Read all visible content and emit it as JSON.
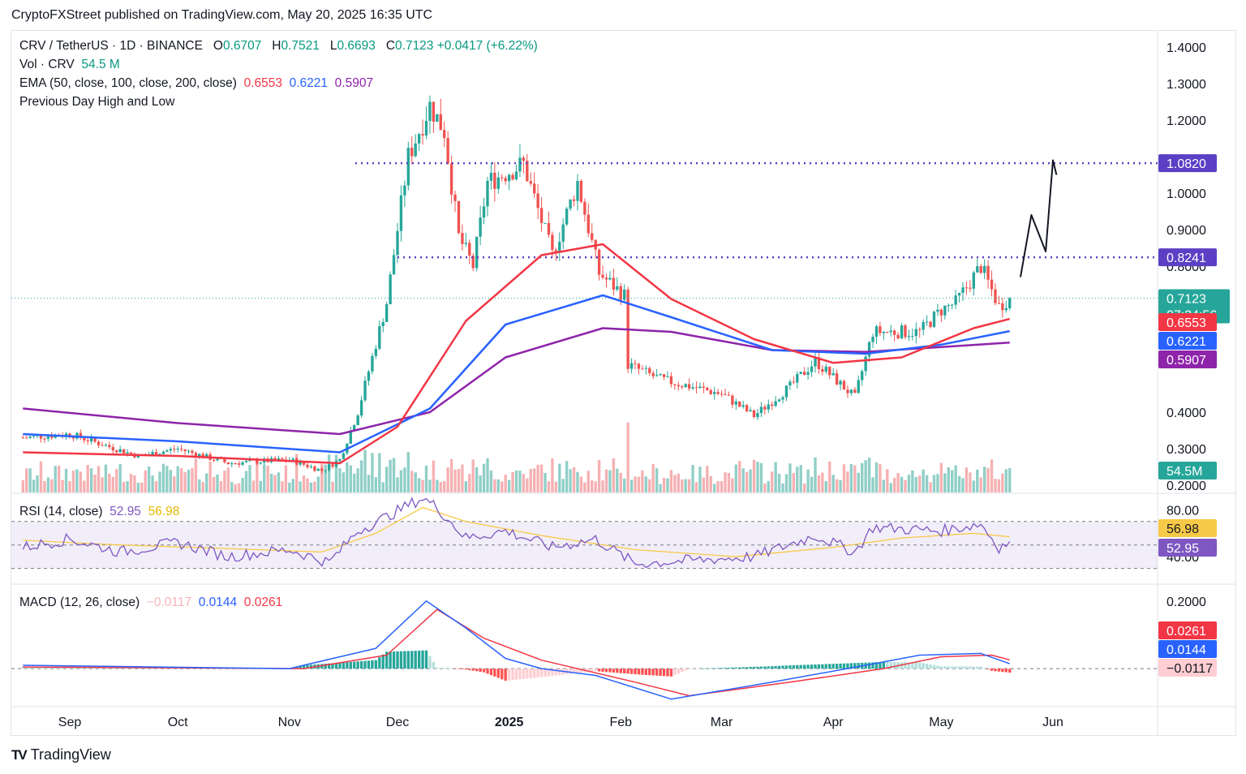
{
  "credit": "CryptoFXStreet published on TradingView.com, May 20, 2025 16:35 UTC",
  "brand": {
    "logo_mark": "TV",
    "name": "TradingView"
  },
  "colors": {
    "up": "#26a69a",
    "down": "#ef5350",
    "ema50": "#f23645",
    "ema100": "#2962ff",
    "ema200": "#8e24aa",
    "level": "#5b3fc4",
    "rsi": "#7e57c2",
    "rsi_ma": "#f7c948",
    "macd": "#2962ff",
    "signal": "#f23645",
    "current": "#26a69a"
  },
  "legend": {
    "symbol": "CRV / TetherUS · 1D · BINANCE",
    "o_label": "O",
    "o": "0.6707",
    "h_label": "H",
    "h": "0.7521",
    "l_label": "L",
    "l": "0.6693",
    "c_label": "C",
    "c": "0.7123",
    "change": "+0.0417 (+6.22%)",
    "vol_label": "Vol · CRV",
    "vol": "54.5 M",
    "ema_label": "EMA (50, close, 100, close, 200, close)",
    "ema50": "0.6553",
    "ema100": "0.6221",
    "ema200": "0.5907",
    "pdhl": "Previous Day High and Low",
    "rsi_label": "RSI (14, close)",
    "rsi": "52.95",
    "rsi_ma": "56.98",
    "macd_label": "MACD (12, 26, close)",
    "macd_hist": "−0.0117",
    "macd": "0.0144",
    "macd_signal": "0.0261"
  },
  "chart_data": [
    {
      "type": "candlestick",
      "title": "CRV / TetherUS · 1D · BINANCE",
      "x_axis": {
        "ticks": [
          "Sep",
          "Oct",
          "Nov",
          "Dec",
          "2025",
          "Feb",
          "Mar",
          "Apr",
          "May",
          "Jun"
        ]
      },
      "y_axis": {
        "ticks": [
          "1.4000",
          "1.3000",
          "1.2000",
          "1.0000",
          "0.9000",
          "0.8000",
          "0.4000",
          "0.3000",
          "0.2000"
        ],
        "range": [
          0.18,
          1.44
        ]
      },
      "key_levels": [
        {
          "label": "1.0820",
          "value": 1.082
        },
        {
          "label": "0.8241",
          "value": 0.8241
        }
      ],
      "current": {
        "price": "0.7123",
        "countdown": "07:24:56",
        "value": 0.7123
      },
      "ema_tags": [
        {
          "label": "0.6553",
          "value": 0.6553
        },
        {
          "label": "0.6221",
          "value": 0.6221
        },
        {
          "label": "0.5907",
          "value": 0.5907
        }
      ],
      "volume_tag": "54.5M",
      "price_path": [
        [
          "2024-08-19",
          0.33
        ],
        [
          "2024-09-01",
          0.34
        ],
        [
          "2024-09-20",
          0.28
        ],
        [
          "2024-10-01",
          0.3
        ],
        [
          "2024-10-15",
          0.26
        ],
        [
          "2024-11-01",
          0.27
        ],
        [
          "2024-11-10",
          0.24
        ],
        [
          "2024-11-15",
          0.27
        ],
        [
          "2024-11-20",
          0.4
        ],
        [
          "2024-11-28",
          0.7
        ],
        [
          "2024-12-04",
          1.1
        ],
        [
          "2024-12-10",
          1.24
        ],
        [
          "2024-12-14",
          1.17
        ],
        [
          "2024-12-18",
          0.88
        ],
        [
          "2024-12-22",
          0.8
        ],
        [
          "2024-12-26",
          1.03
        ],
        [
          "2025-01-05",
          1.08
        ],
        [
          "2025-01-13",
          0.83
        ],
        [
          "2025-01-20",
          1.03
        ],
        [
          "2025-01-26",
          0.78
        ],
        [
          "2025-02-02",
          0.72
        ],
        [
          "2025-02-03",
          0.53
        ],
        [
          "2025-02-12",
          0.49
        ],
        [
          "2025-03-01",
          0.45
        ],
        [
          "2025-03-10",
          0.39
        ],
        [
          "2025-03-20",
          0.47
        ],
        [
          "2025-03-27",
          0.54
        ],
        [
          "2025-04-07",
          0.44
        ],
        [
          "2025-04-12",
          0.62
        ],
        [
          "2025-04-25",
          0.62
        ],
        [
          "2025-05-01",
          0.68
        ],
        [
          "2025-05-05",
          0.7
        ],
        [
          "2025-05-12",
          0.8
        ],
        [
          "2025-05-17",
          0.69
        ],
        [
          "2025-05-20",
          0.7123
        ]
      ],
      "ema50_path": [
        [
          "2024-08-19",
          0.29
        ],
        [
          "2024-10-01",
          0.28
        ],
        [
          "2024-11-15",
          0.26
        ],
        [
          "2024-12-01",
          0.36
        ],
        [
          "2024-12-20",
          0.65
        ],
        [
          "2025-01-10",
          0.83
        ],
        [
          "2025-01-27",
          0.86
        ],
        [
          "2025-02-15",
          0.71
        ],
        [
          "2025-03-10",
          0.6
        ],
        [
          "2025-04-01",
          0.535
        ],
        [
          "2025-04-20",
          0.55
        ],
        [
          "2025-05-10",
          0.63
        ],
        [
          "2025-05-20",
          0.6553
        ]
      ],
      "ema100_path": [
        [
          "2024-08-19",
          0.34
        ],
        [
          "2024-10-01",
          0.32
        ],
        [
          "2024-11-15",
          0.29
        ],
        [
          "2024-12-10",
          0.41
        ],
        [
          "2024-12-31",
          0.64
        ],
        [
          "2025-01-27",
          0.72
        ],
        [
          "2025-02-15",
          0.66
        ],
        [
          "2025-03-15",
          0.57
        ],
        [
          "2025-04-10",
          0.56
        ],
        [
          "2025-05-01",
          0.585
        ],
        [
          "2025-05-20",
          0.6221
        ]
      ],
      "ema200_path": [
        [
          "2024-08-19",
          0.41
        ],
        [
          "2024-10-01",
          0.37
        ],
        [
          "2024-11-15",
          0.34
        ],
        [
          "2024-12-10",
          0.4
        ],
        [
          "2024-12-31",
          0.55
        ],
        [
          "2025-01-27",
          0.63
        ],
        [
          "2025-02-15",
          0.62
        ],
        [
          "2025-03-15",
          0.57
        ],
        [
          "2025-04-10",
          0.565
        ],
        [
          "2025-05-20",
          0.5907
        ]
      ],
      "projection_path": [
        [
          "2025-05-23",
          0.77
        ],
        [
          "2025-05-26",
          0.94
        ],
        [
          "2025-05-30",
          0.84
        ],
        [
          "2025-06-01",
          1.09
        ],
        [
          "2025-06-02",
          1.05
        ]
      ]
    },
    {
      "type": "line",
      "title": "RSI (14, close)",
      "y_axis": {
        "ticks": [
          "80.00",
          "40.00"
        ],
        "range": [
          18,
          92
        ]
      },
      "bands": {
        "upper": 70,
        "middle": 50,
        "lower": 30
      },
      "tags": [
        {
          "label": "56.98",
          "value": 56.98
        },
        {
          "label": "52.95",
          "value": 52.95
        }
      ],
      "rsi_path": [
        [
          "2024-08-19",
          48
        ],
        [
          "2024-09-01",
          55
        ],
        [
          "2024-09-15",
          44
        ],
        [
          "2024-10-01",
          52
        ],
        [
          "2024-10-15",
          40
        ],
        [
          "2024-11-01",
          46
        ],
        [
          "2024-11-12",
          35
        ],
        [
          "2024-11-20",
          62
        ],
        [
          "2024-11-28",
          74
        ],
        [
          "2024-12-04",
          84
        ],
        [
          "2024-12-08",
          90
        ],
        [
          "2024-12-12",
          82
        ],
        [
          "2024-12-20",
          56
        ],
        [
          "2024-12-31",
          62
        ],
        [
          "2025-01-13",
          48
        ],
        [
          "2025-01-25",
          55
        ],
        [
          "2025-02-05",
          34
        ],
        [
          "2025-03-10",
          40
        ],
        [
          "2025-03-27",
          58
        ],
        [
          "2025-04-07",
          44
        ],
        [
          "2025-04-12",
          65
        ],
        [
          "2025-05-01",
          62
        ],
        [
          "2025-05-12",
          68
        ],
        [
          "2025-05-17",
          48
        ],
        [
          "2025-05-20",
          52.95
        ]
      ],
      "rsi_ma_path": [
        [
          "2024-08-19",
          54
        ],
        [
          "2024-09-15",
          50
        ],
        [
          "2024-10-15",
          47
        ],
        [
          "2024-11-10",
          44
        ],
        [
          "2024-11-25",
          60
        ],
        [
          "2024-12-08",
          82
        ],
        [
          "2024-12-20",
          70
        ],
        [
          "2025-01-10",
          58
        ],
        [
          "2025-02-05",
          46
        ],
        [
          "2025-03-05",
          40
        ],
        [
          "2025-04-01",
          48
        ],
        [
          "2025-04-20",
          56
        ],
        [
          "2025-05-10",
          60
        ],
        [
          "2025-05-20",
          56.98
        ]
      ]
    },
    {
      "type": "line",
      "title": "MACD (12, 26, close)",
      "y_axis": {
        "ticks": [
          "0.2000"
        ],
        "range": [
          -0.11,
          0.245
        ]
      },
      "tags": [
        {
          "label": "0.0261",
          "value": 0.0261
        },
        {
          "label": "0.0144",
          "value": 0.0144
        },
        {
          "label": "−0.0117",
          "value": -0.0117
        }
      ],
      "macd_path": [
        [
          "2024-08-19",
          0.01
        ],
        [
          "2024-11-01",
          0.0
        ],
        [
          "2024-11-25",
          0.06
        ],
        [
          "2024-12-09",
          0.2
        ],
        [
          "2024-12-20",
          0.12
        ],
        [
          "2024-12-31",
          0.03
        ],
        [
          "2025-01-10",
          0.0
        ],
        [
          "2025-01-25",
          -0.02
        ],
        [
          "2025-02-15",
          -0.09
        ],
        [
          "2025-03-15",
          -0.04
        ],
        [
          "2025-04-10",
          0.01
        ],
        [
          "2025-04-25",
          0.04
        ],
        [
          "2025-05-12",
          0.045
        ],
        [
          "2025-05-20",
          0.0144
        ]
      ],
      "signal_path": [
        [
          "2024-08-19",
          0.005
        ],
        [
          "2024-11-05",
          0.0
        ],
        [
          "2024-11-28",
          0.04
        ],
        [
          "2024-12-12",
          0.175
        ],
        [
          "2024-12-25",
          0.09
        ],
        [
          "2025-01-10",
          0.025
        ],
        [
          "2025-02-05",
          -0.04
        ],
        [
          "2025-02-20",
          -0.08
        ],
        [
          "2025-03-20",
          -0.04
        ],
        [
          "2025-04-15",
          0.0
        ],
        [
          "2025-05-01",
          0.035
        ],
        [
          "2025-05-15",
          0.04
        ],
        [
          "2025-05-20",
          0.0261
        ]
      ]
    }
  ]
}
